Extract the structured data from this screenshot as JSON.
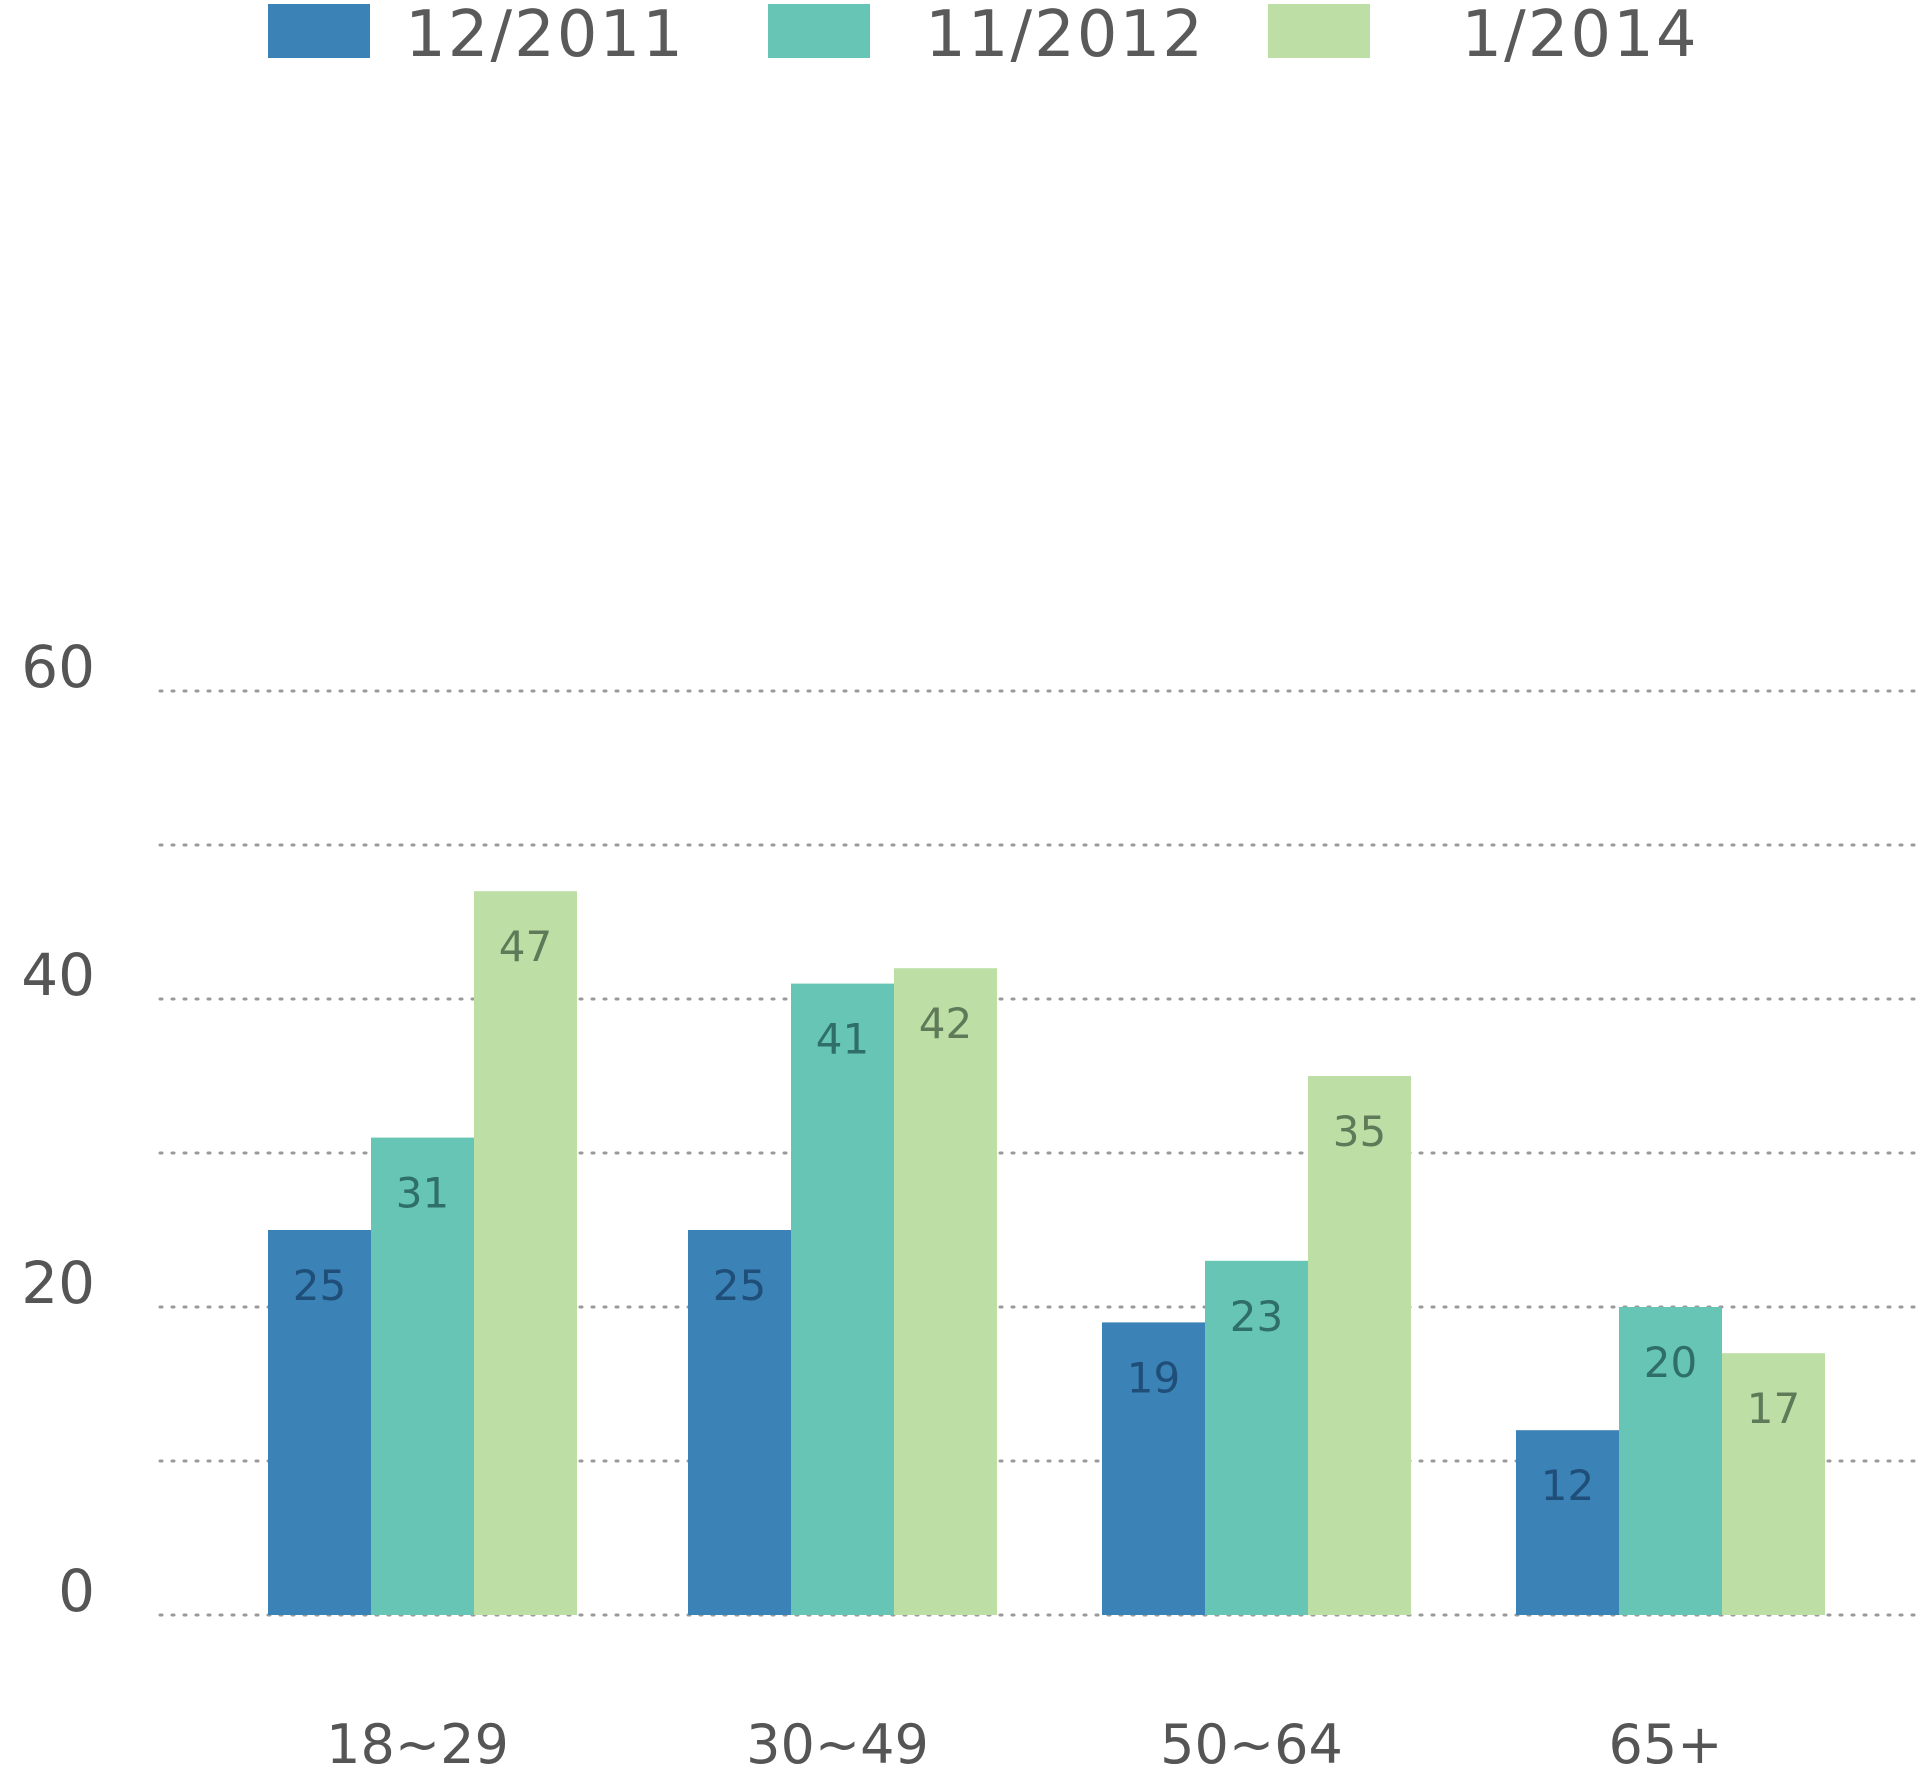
{
  "chart_data": {
    "type": "bar",
    "categories": [
      "18~29",
      "30~49",
      "50~64",
      "65+"
    ],
    "series": [
      {
        "name": "12/2011",
        "values": [
          25,
          25,
          19,
          12
        ],
        "color": "#3b82b6",
        "label_color": "#1f4e79"
      },
      {
        "name": "11/2012",
        "values": [
          31,
          41,
          23,
          20
        ],
        "color": "#66c5b4",
        "label_color": "#2f6f67"
      },
      {
        "name": "1/2014",
        "values": [
          47,
          42,
          35,
          17
        ],
        "color": "#bddfa6",
        "label_color": "#5f7a58"
      }
    ],
    "y_ticks": [
      "0",
      "20",
      "40",
      "60"
    ],
    "ylim": [
      0,
      60
    ],
    "grid": true,
    "legend_position": "top",
    "title": "",
    "xlabel": "",
    "ylabel": ""
  }
}
